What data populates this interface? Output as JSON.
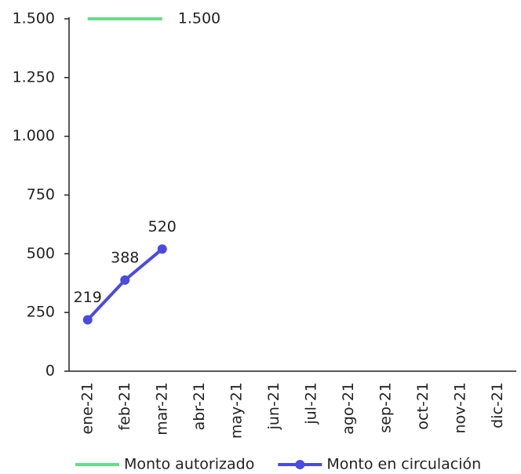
{
  "chart_data": {
    "type": "line",
    "categories": [
      "ene-21",
      "feb-21",
      "mar-21",
      "abr-21",
      "may-21",
      "jun-21",
      "jul-21",
      "ago-21",
      "sep-21",
      "oct-21",
      "nov-21",
      "dic-21"
    ],
    "series": [
      {
        "name": "Monto autorizado",
        "color": "#66dd88",
        "marker": false,
        "values": [
          1500,
          1500,
          1500,
          null,
          null,
          null,
          null,
          null,
          null,
          null,
          null,
          null
        ],
        "value_labels": [
          null,
          null,
          "1.500",
          null,
          null,
          null,
          null,
          null,
          null,
          null,
          null,
          null
        ]
      },
      {
        "name": "Monto en circulación",
        "color": "#4b4be0",
        "marker": true,
        "values": [
          219,
          388,
          520,
          null,
          null,
          null,
          null,
          null,
          null,
          null,
          null,
          null
        ]
      }
    ],
    "ylim": [
      0,
      1500
    ],
    "yticks": [
      0,
      250,
      500,
      750,
      {
        "value": 1000,
        "label": "1.000"
      },
      {
        "value": 1250,
        "label": "1.250"
      },
      {
        "value": 1500,
        "label": "1.500"
      }
    ],
    "grid": false,
    "legend": "bottom"
  }
}
